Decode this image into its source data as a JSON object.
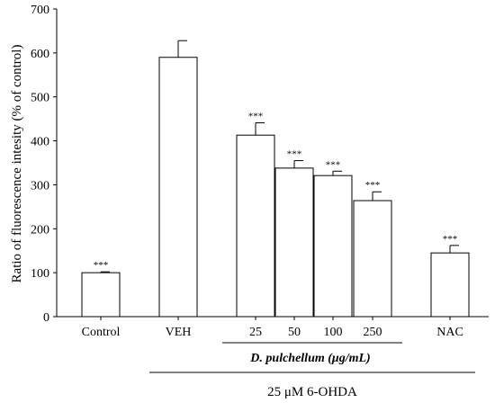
{
  "chart_data": {
    "type": "bar",
    "title": "",
    "xlabel": "",
    "ylabel": "Ratio of fluorescence intesity (% of control)",
    "ylim": [
      0,
      700
    ],
    "yticks": [
      0,
      100,
      200,
      300,
      400,
      500,
      600,
      700
    ],
    "grid": false,
    "categories": [
      "Control",
      "VEH",
      "25",
      "50",
      "100",
      "250",
      "NAC"
    ],
    "values": [
      100,
      590,
      413,
      338,
      321,
      264,
      145
    ],
    "errors": [
      2,
      38,
      28,
      17,
      10,
      20,
      17
    ],
    "significance": [
      "***",
      "",
      "***",
      "***",
      "***",
      "***",
      "***"
    ],
    "group_labels": {
      "extract": "D. pulchellum (μg/mL)",
      "treatment": "25 μM 6-OHDA"
    }
  }
}
